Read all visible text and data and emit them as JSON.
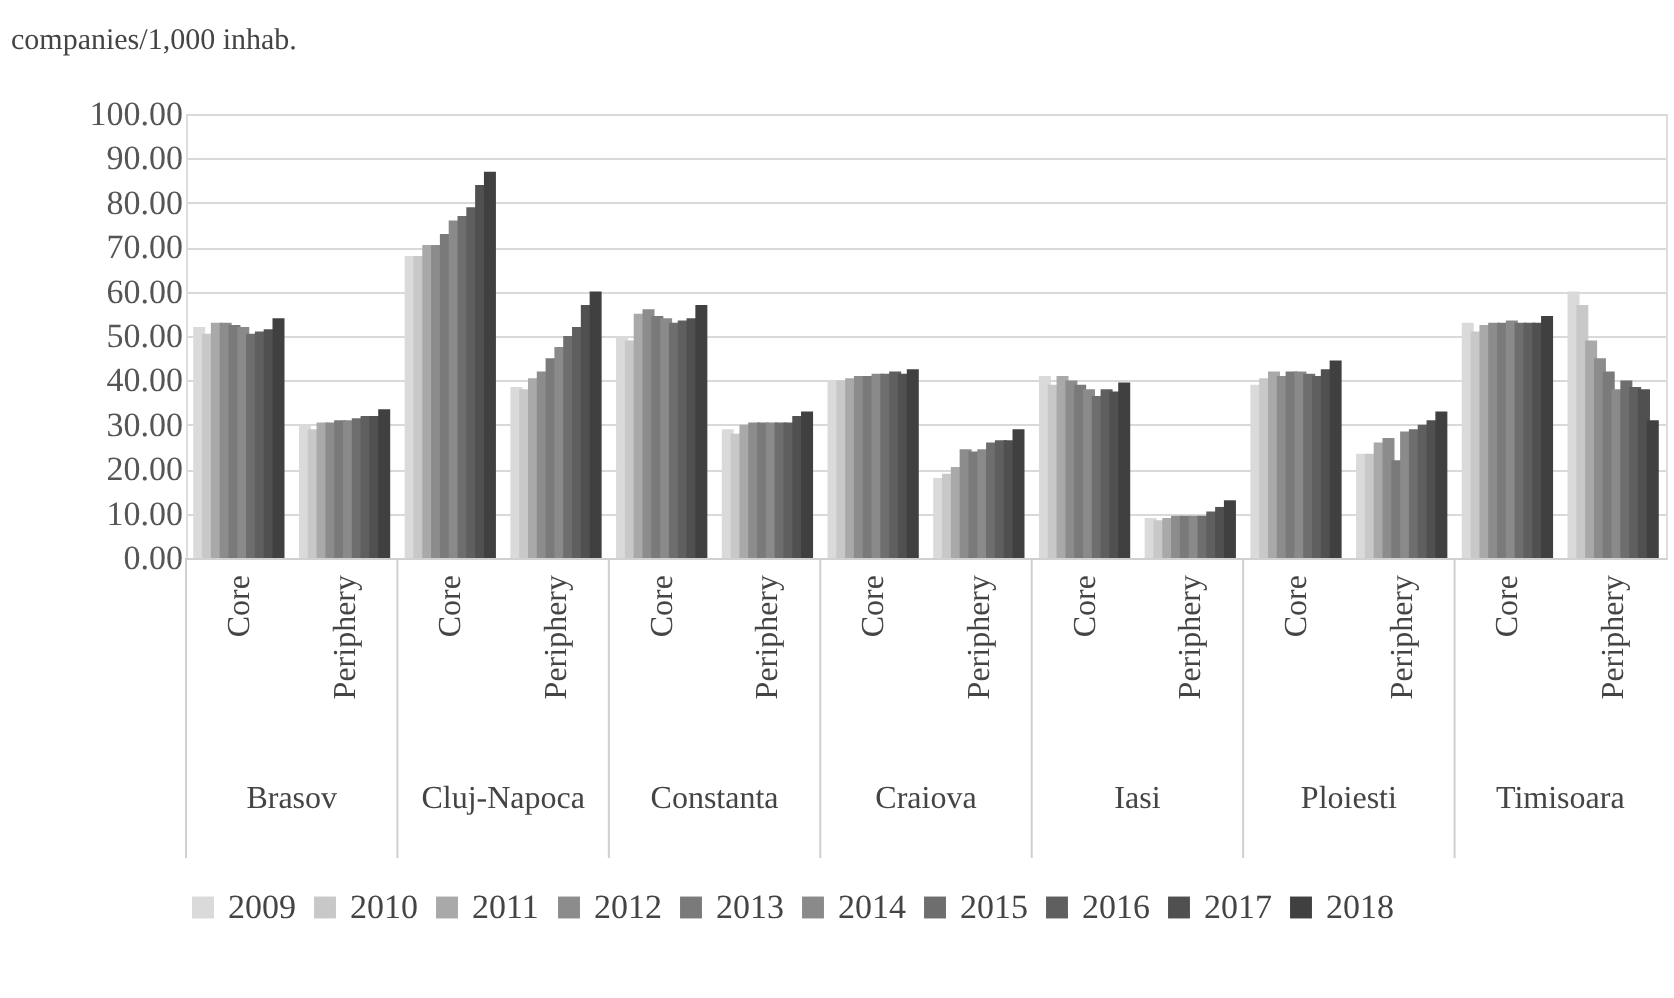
{
  "chart_data": {
    "type": "bar",
    "ylabel": "companies/1,000 inhab.",
    "categories": [
      "Core",
      "Periphery",
      "Core",
      "Periphery",
      "Core",
      "Periphery",
      "Core",
      "Periphery",
      "Core",
      "Periphery",
      "Core",
      "Periphery",
      "Core",
      "Periphery"
    ],
    "annotations": [
      "Brasov",
      "Cluj-Napoca",
      "Constanta",
      "Craiova",
      "Iasi",
      "Ploiesti",
      "Timisoara"
    ],
    "series": [
      {
        "name": "2009",
        "color": "#dadada",
        "values": [
          52,
          30,
          68,
          38.5,
          50,
          29,
          40,
          18,
          41,
          9,
          39,
          23.5,
          53,
          60
        ]
      },
      {
        "name": "2010",
        "color": "#c8c8c8",
        "values": [
          50.5,
          29,
          68,
          38,
          49,
          28,
          40,
          19,
          39,
          8.5,
          40.5,
          23.5,
          51,
          57
        ]
      },
      {
        "name": "2011",
        "color": "#a9a9a9",
        "values": [
          53,
          30.5,
          70.5,
          40.5,
          55,
          30,
          40.5,
          20.5,
          41,
          9,
          42,
          26,
          52.5,
          49
        ]
      },
      {
        "name": "2012",
        "color": "#8c8c8c",
        "values": [
          53,
          30.5,
          70.5,
          42,
          56,
          30.5,
          41,
          24.5,
          40,
          9.5,
          41,
          27,
          53,
          45
        ]
      },
      {
        "name": "2013",
        "color": "#7a7a7a",
        "values": [
          52.5,
          31,
          73,
          45,
          54.5,
          30.5,
          41,
          24,
          39,
          9.5,
          42,
          22,
          53,
          42
        ]
      },
      {
        "name": "2014",
        "color": "#8a8a8a",
        "values": [
          52,
          31,
          76,
          47.5,
          54,
          30.5,
          41.5,
          24.5,
          38,
          9.5,
          42,
          28.5,
          53.5,
          38
        ]
      },
      {
        "name": "2015",
        "color": "#6e6e6e",
        "values": [
          50.5,
          31.5,
          77,
          50,
          53,
          30.5,
          41.5,
          26,
          36.5,
          9.5,
          41.5,
          29,
          53,
          40
        ]
      },
      {
        "name": "2016",
        "color": "#5f5f5f",
        "values": [
          51,
          32,
          79,
          52,
          53.5,
          30.5,
          42,
          26.5,
          38,
          10.5,
          41,
          30,
          53,
          38.5
        ]
      },
      {
        "name": "2017",
        "color": "#505050",
        "values": [
          51.5,
          32,
          84,
          57,
          54,
          32,
          41.5,
          26.5,
          37.5,
          11.5,
          42.5,
          31,
          53,
          38
        ]
      },
      {
        "name": "2018",
        "color": "#404040",
        "values": [
          54,
          33.5,
          87,
          60,
          57,
          33,
          42.5,
          29,
          39.5,
          13,
          44.5,
          33,
          54.5,
          31
        ]
      }
    ],
    "ylim": [
      0,
      100
    ],
    "yticks": [
      {
        "value": 0,
        "label": "0.00"
      },
      {
        "value": 10,
        "label": "10.00"
      },
      {
        "value": 20,
        "label": "20.00"
      },
      {
        "value": 30,
        "label": "30.00"
      },
      {
        "value": 40,
        "label": "40.00"
      },
      {
        "value": 50,
        "label": "50.00"
      },
      {
        "value": 60,
        "label": "60.00"
      },
      {
        "value": 70,
        "label": "70.00"
      },
      {
        "value": 80,
        "label": "80.00"
      },
      {
        "value": 90,
        "label": "90.00"
      },
      {
        "value": 100,
        "label": "100.00"
      }
    ],
    "grid": "y",
    "legend": "bottom"
  }
}
